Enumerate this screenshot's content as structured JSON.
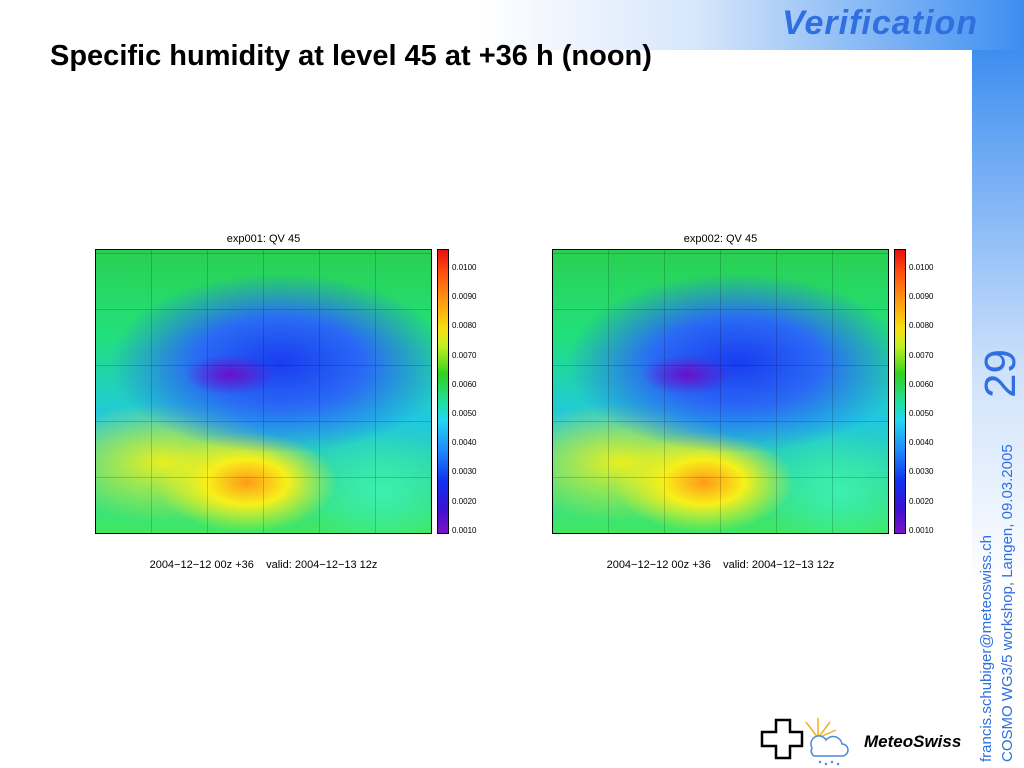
{
  "header": {
    "section": "Verification",
    "title": "Specific humidity at level 45 at +36 h (noon)"
  },
  "panels": [
    {
      "title": "exp001: QV 45",
      "footer": "2004−12−12 00z +36    valid: 2004−12−13 12z"
    },
    {
      "title": "exp002: QV 45",
      "footer": "2004−12−12 00z +36    valid: 2004−12−13 12z"
    }
  ],
  "colorbar_labels": [
    "0.0100",
    "0.0090",
    "0.0080",
    "0.0070",
    "0.0060",
    "0.0050",
    "0.0040",
    "0.0030",
    "0.0020",
    "0.0010"
  ],
  "side": {
    "page": "29",
    "email": "francis.schubiger@meteoswiss.ch",
    "event": "COSMO WG3/5 workshop, Langen, 09.03.2005"
  },
  "logo": {
    "text": "MeteoSwiss"
  }
}
